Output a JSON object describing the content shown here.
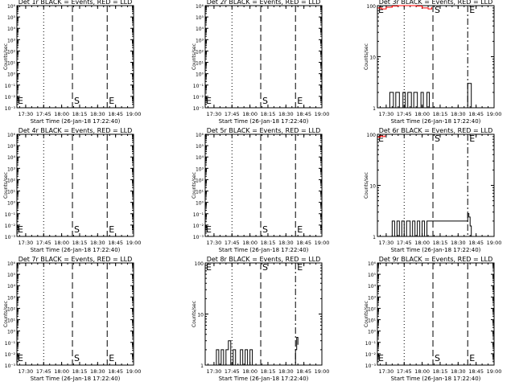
{
  "chart_data": [
    {
      "type": "line",
      "title": "Det 1r BLACK = Events, RED = LLD",
      "xlabel": "Start Time (26-Jan-18 17:22:40)",
      "ylabel": "Counts/sec",
      "y_scale": "log",
      "ylim": [
        0.001,
        1000000
      ],
      "ytick_labels": [
        "10⁻³",
        "10⁻²",
        "10⁻¹",
        "10⁰",
        "10¹",
        "10²",
        "10³",
        "10⁴",
        "10⁵",
        "10⁶"
      ],
      "xlim": [
        "17:22:40",
        "19:00"
      ],
      "xtick_labels": [
        "17:30",
        "17:45",
        "18:00",
        "18:15",
        "18:30",
        "18:45",
        "19:00"
      ],
      "markers": [
        {
          "label": "",
          "time": "17:45",
          "style": "dotted"
        },
        {
          "label": "S",
          "time": "18:09",
          "style": "dashed"
        },
        {
          "label": "E",
          "time": "18:38",
          "style": "dashed"
        }
      ],
      "edge_label": "E",
      "series": [
        {
          "name": "BLACK = Events",
          "color": "#000000",
          "x": [],
          "y": []
        },
        {
          "name": "RED = LLD",
          "color": "#ff0000",
          "x": [],
          "y": []
        }
      ]
    },
    {
      "type": "line",
      "title": "Det 2r BLACK = Events, RED = LLD",
      "xlabel": "Start Time (26-Jan-18 17:22:40)",
      "ylabel": "Counts/sec",
      "y_scale": "log",
      "ylim": [
        0.001,
        1000000
      ],
      "ytick_labels": [
        "10⁻³",
        "10⁻²",
        "10⁻¹",
        "10⁰",
        "10¹",
        "10²",
        "10³",
        "10⁴",
        "10⁵",
        "10⁶"
      ],
      "xlim": [
        "17:22:40",
        "19:00"
      ],
      "xtick_labels": [
        "17:30",
        "17:45",
        "18:00",
        "18:15",
        "18:30",
        "18:45",
        "19:00"
      ],
      "markers": [
        {
          "label": "",
          "time": "17:45",
          "style": "dotted"
        },
        {
          "label": "S",
          "time": "18:09",
          "style": "dashed"
        },
        {
          "label": "E",
          "time": "18:38",
          "style": "dashed"
        }
      ],
      "edge_label": "E",
      "series": [
        {
          "name": "BLACK = Events",
          "color": "#000000",
          "x": [],
          "y": []
        },
        {
          "name": "RED = LLD",
          "color": "#ff0000",
          "x": [],
          "y": []
        }
      ]
    },
    {
      "type": "line",
      "title": "Det 3r BLACK = Events, RED = LLD",
      "xlabel": "Start Time (26-Jan-18 17:22:40)",
      "ylabel": "Counts/sec",
      "y_scale": "log",
      "ylim": [
        1,
        100
      ],
      "ytick_labels": [
        "1",
        "10",
        "100"
      ],
      "xlim": [
        "17:22:40",
        "19:00"
      ],
      "xtick_labels": [
        "17:30",
        "17:45",
        "18:00",
        "18:15",
        "18:30",
        "18:45",
        "19:00"
      ],
      "markers": [
        {
          "label": "",
          "time": "17:45",
          "style": "dotted"
        },
        {
          "label": "S",
          "time": "18:09",
          "style": "dashed"
        },
        {
          "label": "E",
          "time": "18:38",
          "style": "dashdot"
        }
      ],
      "edge_label": "E",
      "series": [
        {
          "name": "BLACK = Events",
          "color": "#000000",
          "x": [
            "17:30",
            "17:33",
            "17:36",
            "17:38",
            "17:41",
            "17:44",
            "17:46",
            "17:48",
            "17:51",
            "17:53",
            "17:56",
            "17:59",
            "18:01",
            "18:04",
            "18:06",
            "18:38",
            "18:39",
            "18:40",
            "18:41"
          ],
          "y": [
            1,
            2,
            1,
            2,
            1,
            2,
            1,
            2,
            1,
            2,
            1,
            2,
            1,
            2,
            1,
            3,
            3,
            3,
            1
          ]
        },
        {
          "name": "RED = LLD",
          "color": "#ff0000",
          "x": [
            "17:23",
            "17:26",
            "17:30",
            "17:35",
            "17:40",
            "17:45",
            "17:50",
            "17:55",
            "18:00",
            "18:05",
            "18:08"
          ],
          "y": [
            90,
            86,
            93,
            98,
            100,
            100,
            100,
            98,
            90,
            86,
            94
          ]
        }
      ]
    },
    {
      "type": "line",
      "title": "Det 4r BLACK = Events, RED = LLD",
      "xlabel": "Start Time (26-Jan-18 17:22:40)",
      "ylabel": "Counts/sec",
      "y_scale": "log",
      "ylim": [
        0.001,
        1000000
      ],
      "ytick_labels": [
        "10⁻³",
        "10⁻²",
        "10⁻¹",
        "10⁰",
        "10¹",
        "10²",
        "10³",
        "10⁴",
        "10⁵",
        "10⁶"
      ],
      "xlim": [
        "17:22:40",
        "19:00"
      ],
      "xtick_labels": [
        "17:30",
        "17:45",
        "18:00",
        "18:15",
        "18:30",
        "18:45",
        "19:00"
      ],
      "markers": [
        {
          "label": "",
          "time": "17:45",
          "style": "dotted"
        },
        {
          "label": "S",
          "time": "18:09",
          "style": "dashed"
        },
        {
          "label": "E",
          "time": "18:38",
          "style": "dashed"
        }
      ],
      "edge_label": "E",
      "series": [
        {
          "name": "BLACK = Events",
          "color": "#000000",
          "x": [],
          "y": []
        },
        {
          "name": "RED = LLD",
          "color": "#ff0000",
          "x": [],
          "y": []
        }
      ]
    },
    {
      "type": "line",
      "title": "Det 5r BLACK = Events, RED = LLD",
      "xlabel": "Start Time (26-Jan-18 17:22:40)",
      "ylabel": "Counts/sec",
      "y_scale": "log",
      "ylim": [
        0.001,
        1000000
      ],
      "ytick_labels": [
        "10⁻³",
        "10⁻²",
        "10⁻¹",
        "10⁰",
        "10¹",
        "10²",
        "10³",
        "10⁴",
        "10⁵",
        "10⁶"
      ],
      "xlim": [
        "17:22:40",
        "19:00"
      ],
      "xtick_labels": [
        "17:30",
        "17:45",
        "18:00",
        "18:15",
        "18:30",
        "18:45",
        "19:00"
      ],
      "markers": [
        {
          "label": "",
          "time": "17:45",
          "style": "dotted"
        },
        {
          "label": "S",
          "time": "18:09",
          "style": "dashed"
        },
        {
          "label": "E",
          "time": "18:38",
          "style": "dashed"
        }
      ],
      "edge_label": "E",
      "series": [
        {
          "name": "BLACK = Events",
          "color": "#000000",
          "x": [],
          "y": []
        },
        {
          "name": "RED = LLD",
          "color": "#ff0000",
          "x": [],
          "y": []
        }
      ]
    },
    {
      "type": "line",
      "title": "Det 6r BLACK = Events, RED = LLD",
      "xlabel": "Start Time (26-Jan-18 17:22:40)",
      "ylabel": "Counts/sec",
      "y_scale": "log",
      "ylim": [
        1,
        100
      ],
      "ytick_labels": [
        "1",
        "10",
        "100"
      ],
      "xlim": [
        "17:22:40",
        "19:00"
      ],
      "xtick_labels": [
        "17:30",
        "17:45",
        "18:00",
        "18:15",
        "18:30",
        "18:45",
        "19:00"
      ],
      "markers": [
        {
          "label": "",
          "time": "17:45",
          "style": "dotted"
        },
        {
          "label": "S",
          "time": "18:09",
          "style": "dashed"
        },
        {
          "label": "E",
          "time": "18:38",
          "style": "dashdot"
        }
      ],
      "edge_label": "E",
      "series": [
        {
          "name": "BLACK = Events",
          "color": "#000000",
          "x": [
            "17:33",
            "17:35",
            "17:37",
            "17:39",
            "17:41",
            "17:43",
            "17:45",
            "17:47",
            "17:50",
            "17:52",
            "17:54",
            "17:56",
            "17:58",
            "18:00",
            "18:02",
            "18:04",
            "18:38",
            "18:39",
            "18:40",
            "18:41"
          ],
          "y": [
            1,
            2,
            1,
            2,
            1,
            2,
            1,
            2,
            1,
            2,
            1,
            2,
            1,
            2,
            1,
            2,
            2.8,
            2.4,
            1.6,
            1
          ]
        },
        {
          "name": "RED = LLD",
          "color": "#ff0000",
          "x": [
            "17:23",
            "17:25",
            "17:27",
            "17:29"
          ],
          "y": [
            88,
            92,
            90,
            95
          ]
        }
      ]
    },
    {
      "type": "line",
      "title": "Det 7r BLACK = Events, RED = LLD",
      "xlabel": "Start Time (26-Jan-18 17:22:40)",
      "ylabel": "Counts/sec",
      "y_scale": "log",
      "ylim": [
        0.001,
        1000000
      ],
      "ytick_labels": [
        "10⁻³",
        "10⁻²",
        "10⁻¹",
        "10⁰",
        "10¹",
        "10²",
        "10³",
        "10⁴",
        "10⁵",
        "10⁶"
      ],
      "xlim": [
        "17:22:40",
        "19:00"
      ],
      "xtick_labels": [
        "17:30",
        "17:45",
        "18:00",
        "18:15",
        "18:30",
        "18:45",
        "19:00"
      ],
      "markers": [
        {
          "label": "",
          "time": "17:45",
          "style": "dotted"
        },
        {
          "label": "S",
          "time": "18:09",
          "style": "dashed"
        },
        {
          "label": "E",
          "time": "18:38",
          "style": "dashed"
        }
      ],
      "edge_label": "E",
      "series": [
        {
          "name": "BLACK = Events",
          "color": "#000000",
          "x": [],
          "y": []
        },
        {
          "name": "RED = LLD",
          "color": "#ff0000",
          "x": [],
          "y": []
        }
      ]
    },
    {
      "type": "line",
      "title": "Det 8r BLACK = Events, RED = LLD",
      "xlabel": "Start Time (26-Jan-18 17:22:40)",
      "ylabel": "Counts/sec",
      "y_scale": "log",
      "ylim": [
        1,
        100
      ],
      "ytick_labels": [
        "1",
        "10",
        "100"
      ],
      "xlim": [
        "17:22:40",
        "19:00"
      ],
      "xtick_labels": [
        "17:30",
        "17:45",
        "18:00",
        "18:15",
        "18:30",
        "18:45",
        "19:00"
      ],
      "markers": [
        {
          "label": "",
          "time": "17:45",
          "style": "dotted"
        },
        {
          "label": "S",
          "time": "18:09",
          "style": "dashed"
        },
        {
          "label": "E",
          "time": "18:38",
          "style": "dashdot"
        }
      ],
      "edge_label": "E",
      "series": [
        {
          "name": "BLACK = Events",
          "color": "#000000",
          "x": [
            "17:30",
            "17:32",
            "17:34",
            "17:36",
            "17:38",
            "17:40",
            "17:42",
            "17:44",
            "17:46",
            "17:48",
            "17:52",
            "17:54",
            "17:56",
            "17:58",
            "18:00",
            "18:02",
            "18:38",
            "18:39",
            "18:40"
          ],
          "y": [
            1,
            2,
            1,
            2,
            1,
            2,
            3,
            1,
            2,
            1,
            2,
            1,
            2,
            1,
            2,
            1,
            2,
            3.5,
            2.5
          ]
        },
        {
          "name": "RED = LLD",
          "color": "#ff0000",
          "x": [],
          "y": []
        }
      ]
    },
    {
      "type": "line",
      "title": "Det 9r BLACK = Events, RED = LLD",
      "xlabel": "Start Time (26-Jan-18 17:22:40)",
      "ylabel": "Counts/sec",
      "y_scale": "log",
      "ylim": [
        0.001,
        1000000
      ],
      "ytick_labels": [
        "10⁻³",
        "10⁻²",
        "10⁻¹",
        "10⁰",
        "10¹",
        "10²",
        "10³",
        "10⁴",
        "10⁵",
        "10⁶"
      ],
      "xlim": [
        "17:22:40",
        "19:00"
      ],
      "xtick_labels": [
        "17:30",
        "17:45",
        "18:00",
        "18:15",
        "18:30",
        "18:45",
        "19:00"
      ],
      "markers": [
        {
          "label": "",
          "time": "17:45",
          "style": "dotted"
        },
        {
          "label": "S",
          "time": "18:09",
          "style": "dashed"
        },
        {
          "label": "E",
          "time": "18:38",
          "style": "dashed"
        }
      ],
      "edge_label": "E",
      "series": [
        {
          "name": "BLACK = Events",
          "color": "#000000",
          "x": [],
          "y": []
        },
        {
          "name": "RED = LLD",
          "color": "#ff0000",
          "x": [],
          "y": []
        }
      ]
    }
  ]
}
